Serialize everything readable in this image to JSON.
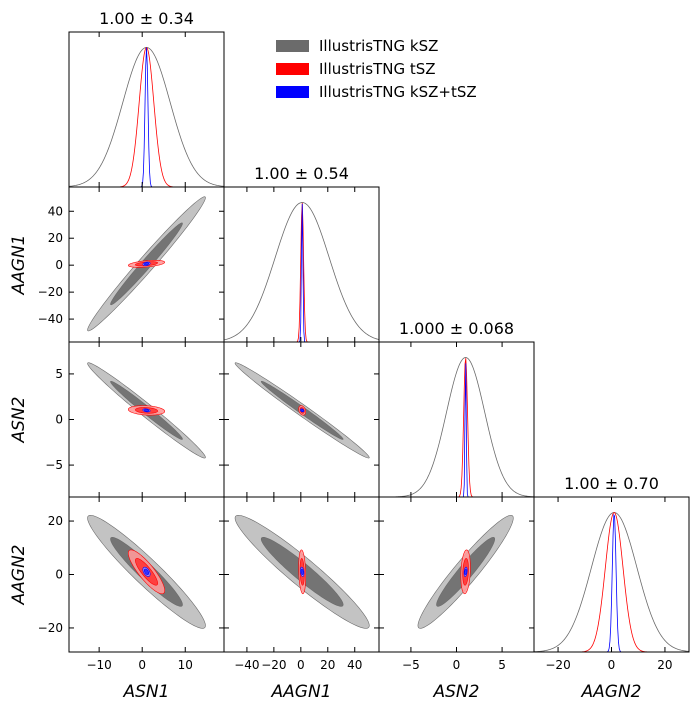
{
  "chart_data": {
    "type": "triangle",
    "parameters": [
      "ASN1",
      "AAGN1",
      "ASN2",
      "AAGN2"
    ],
    "axis_labels": [
      "$ASN1$",
      "$AAGN1$",
      "$ASN2$",
      "$AAGN2$"
    ],
    "marginal_titles": [
      "1.00 ± 0.34",
      "1.00 ± 0.54",
      "1.000 ± 0.068",
      "1.00 ± 0.70"
    ],
    "ranges": [
      [
        -17,
        19
      ],
      [
        -57,
        58
      ],
      [
        -8.5,
        8.5
      ],
      [
        -29,
        29
      ]
    ],
    "ticks": [
      [
        -10,
        0,
        10
      ],
      [
        -40,
        -20,
        0,
        20,
        40
      ],
      [
        -5,
        0,
        5
      ],
      [
        -20,
        0,
        20
      ]
    ],
    "tick_labels": [
      [
        "−10",
        "0",
        "10"
      ],
      [
        "−40",
        "−20",
        "0",
        "20",
        "40"
      ],
      [
        "−5",
        "0",
        "5"
      ],
      [
        "−20",
        "0",
        "20"
      ]
    ],
    "series": [
      {
        "name": "IllustrisTNG kSZ",
        "color": "#6b6b6b",
        "means": [
          1,
          1,
          1,
          1
        ],
        "sigmas": [
          5.5,
          20,
          2.1,
          8.5
        ],
        "correlations": [
          [
            0,
            1,
            0.985
          ],
          [
            0,
            2,
            -0.985
          ],
          [
            0,
            3,
            -0.95
          ],
          [
            1,
            2,
            -0.99
          ],
          [
            1,
            3,
            -0.95
          ],
          [
            2,
            3,
            0.95
          ]
        ]
      },
      {
        "name": "IllustrisTNG tSZ",
        "color": "#ff0000",
        "means": [
          1,
          1,
          1,
          1
        ],
        "sigmas": [
          1.7,
          1.05,
          0.21,
          3.3
        ],
        "correlations": [
          [
            0,
            1,
            0.45
          ],
          [
            0,
            2,
            -0.2
          ],
          [
            0,
            3,
            -0.85
          ],
          [
            1,
            2,
            -0.3
          ],
          [
            1,
            3,
            -0.2
          ],
          [
            2,
            3,
            0.2
          ]
        ]
      },
      {
        "name": "IllustrisTNG kSZ+tSZ",
        "color": "#0000ff",
        "means": [
          1,
          1,
          1,
          1
        ],
        "sigmas": [
          0.34,
          0.54,
          0.068,
          0.7
        ],
        "correlations": [
          [
            0,
            1,
            0.3
          ],
          [
            0,
            2,
            -0.3
          ],
          [
            0,
            3,
            -0.5
          ],
          [
            1,
            2,
            -0.3
          ],
          [
            1,
            3,
            -0.3
          ],
          [
            2,
            3,
            0.3
          ]
        ]
      }
    ],
    "legend_position": "top-right"
  }
}
